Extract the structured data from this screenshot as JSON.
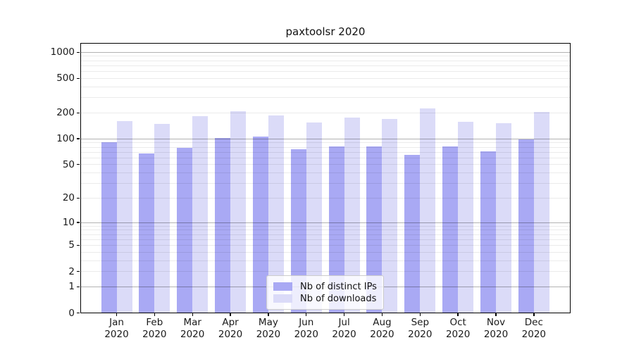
{
  "title": "paxtoolsr 2020",
  "legend": {
    "items": [
      {
        "label": "Nb of distinct IPs",
        "color": "#a9a9f4",
        "key": "ips"
      },
      {
        "label": "Nb of downloads",
        "color": "#dbdbf8",
        "key": "downloads"
      }
    ]
  },
  "chart_data": {
    "type": "bar",
    "title": "paxtoolsr 2020",
    "categories": [
      "Jan",
      "Feb",
      "Mar",
      "Apr",
      "May",
      "Jun",
      "Jul",
      "Aug",
      "Sep",
      "Oct",
      "Nov",
      "Dec"
    ],
    "category_year": "2020",
    "series": [
      {
        "name": "Nb of distinct IPs",
        "key": "ips",
        "color": "#a9a9f4",
        "values": [
          91,
          68,
          78,
          102,
          107,
          75,
          81,
          82,
          65,
          81,
          71,
          98
        ]
      },
      {
        "name": "Nb of downloads",
        "key": "downloads",
        "color": "#dbdbf8",
        "values": [
          160,
          148,
          182,
          210,
          185,
          155,
          177,
          169,
          225,
          159,
          152,
          204
        ]
      }
    ],
    "y_axis": {
      "scale": "log1p",
      "tick_labels": [
        0,
        1,
        2,
        5,
        10,
        20,
        50,
        100,
        200,
        500,
        1000
      ],
      "major_gridlines": [
        1,
        10,
        100,
        1000
      ],
      "minor_gridline_decades": [
        1,
        10,
        100
      ],
      "top_value": 1290
    },
    "grid": true,
    "legend_position": "inside-bottom-center",
    "axis_color": "#000000",
    "background_color": "#ffffff"
  }
}
